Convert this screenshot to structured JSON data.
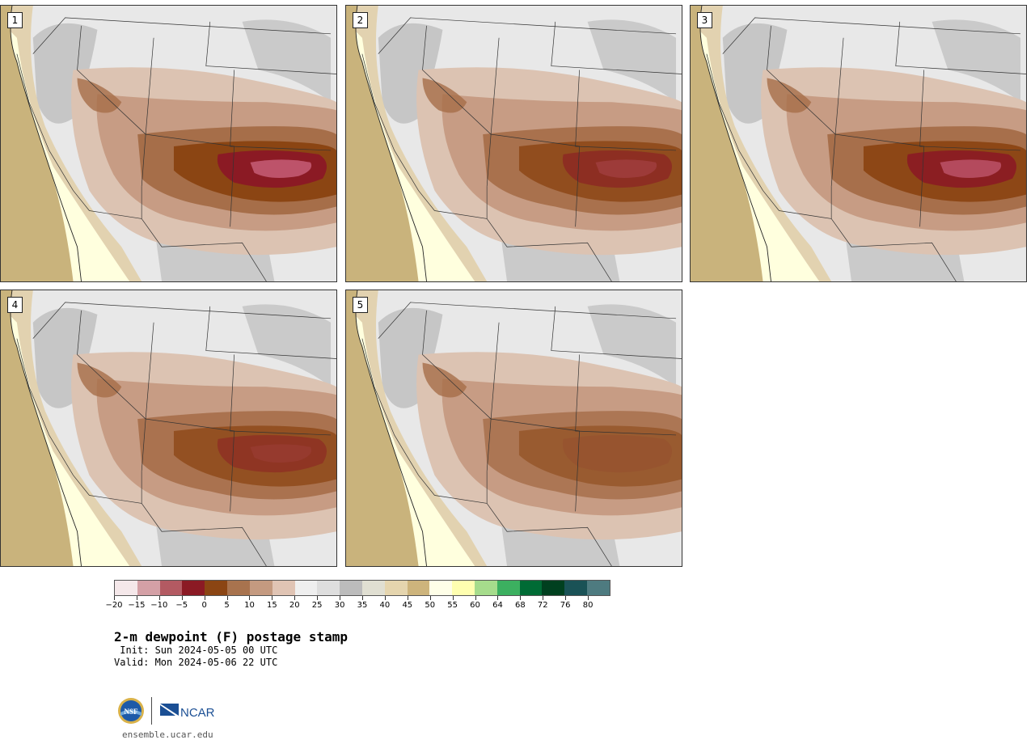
{
  "panels": [
    {
      "label": "1",
      "intensity": 1.0
    },
    {
      "label": "2",
      "intensity": 0.8
    },
    {
      "label": "3",
      "intensity": 0.95
    },
    {
      "label": "4",
      "intensity": 0.75
    },
    {
      "label": "5",
      "intensity": 0.55
    }
  ],
  "colorbar": {
    "colors": [
      "#f5e8ea",
      "#d4a0a6",
      "#b35a62",
      "#8b1a24",
      "#8b4513",
      "#a8734e",
      "#c49a80",
      "#e0c4b4",
      "#efefef",
      "#dedede",
      "#bcbcbc",
      "#e0dfd2",
      "#e5d5ae",
      "#cdb47c",
      "#ffffe8",
      "#ffffb0",
      "#a6dc8c",
      "#3cb060",
      "#006b35",
      "#00401f",
      "#1a5256",
      "#4e7b80"
    ],
    "tick_labels": [
      "−20",
      "−15",
      "−10",
      "−5",
      "0",
      "5",
      "10",
      "15",
      "20",
      "25",
      "30",
      "35",
      "40",
      "45",
      "50",
      "55",
      "60",
      "64",
      "68",
      "72",
      "76",
      "80"
    ]
  },
  "palette": {
    "ocean": "#c9b37c",
    "coast_pale": "#ffffde",
    "land_light": "#e8e8e8",
    "land_gray": "#bdbdbd",
    "land_tan": "#e2d2b0",
    "brown_light": "#dcc3b2",
    "brown_mid": "#c4987e",
    "brown": "#a66e49",
    "brown_dark": "#8b4513",
    "crimson": "#8b1a24",
    "pink": "#c25a72",
    "border": "#333333"
  },
  "title": "2-m dewpoint (F) postage stamp",
  "init": " Init: Sun 2024-05-05 00 UTC",
  "valid": "Valid: Mon 2024-05-06 22 UTC",
  "logo": {
    "nsf_text": "NSF",
    "ncar_text": "NCAR"
  },
  "url": "ensemble.ucar.edu"
}
